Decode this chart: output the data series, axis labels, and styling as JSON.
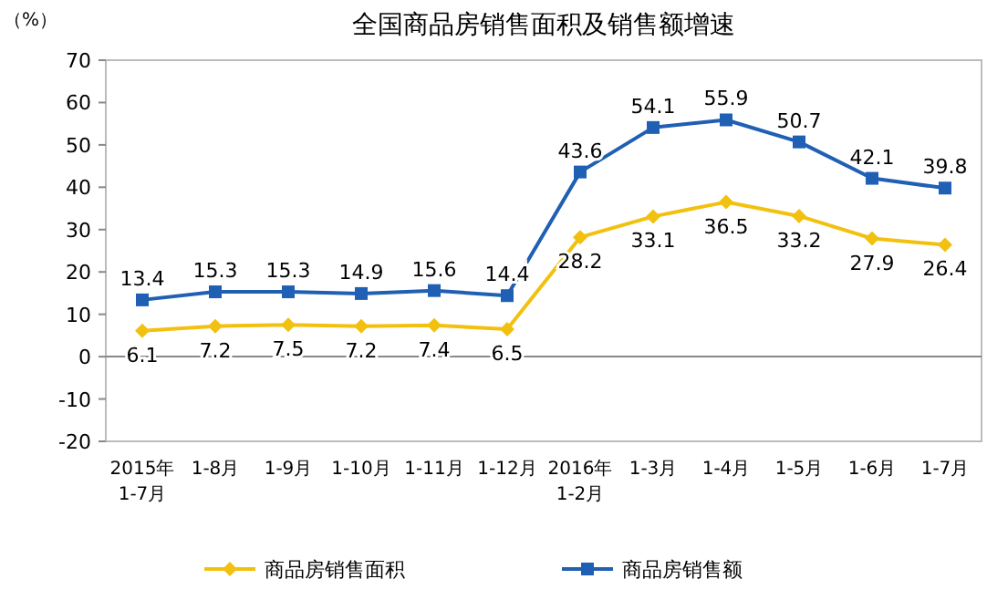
{
  "chart_data": {
    "type": "line",
    "title": "全国商品房销售面积及销售额增速",
    "ylabel": "（%）",
    "categories": [
      "2015年 1-7月",
      "1-8月",
      "1-9月",
      "1-10月",
      "1-11月",
      "1-12月",
      "2016年 1-2月",
      "1-3月",
      "1-4月",
      "1-5月",
      "1-6月",
      "1-7月"
    ],
    "series": [
      {
        "name": "商品房销售面积",
        "color": "#f2c10f",
        "marker": "diamond",
        "values": [
          6.1,
          7.2,
          7.5,
          7.2,
          7.4,
          6.5,
          28.2,
          33.1,
          36.5,
          33.2,
          27.9,
          26.4
        ]
      },
      {
        "name": "商品房销售额",
        "color": "#1f5fb4",
        "marker": "square",
        "values": [
          13.4,
          15.3,
          15.3,
          14.9,
          15.6,
          14.4,
          43.6,
          54.1,
          55.9,
          50.7,
          42.1,
          39.8
        ]
      }
    ],
    "ylim": [
      -20,
      70
    ],
    "yticks": [
      -20,
      -10,
      0,
      10,
      20,
      30,
      40,
      50,
      60,
      70
    ],
    "data_labels": true,
    "legend": "bottom",
    "line_style": "solid"
  }
}
